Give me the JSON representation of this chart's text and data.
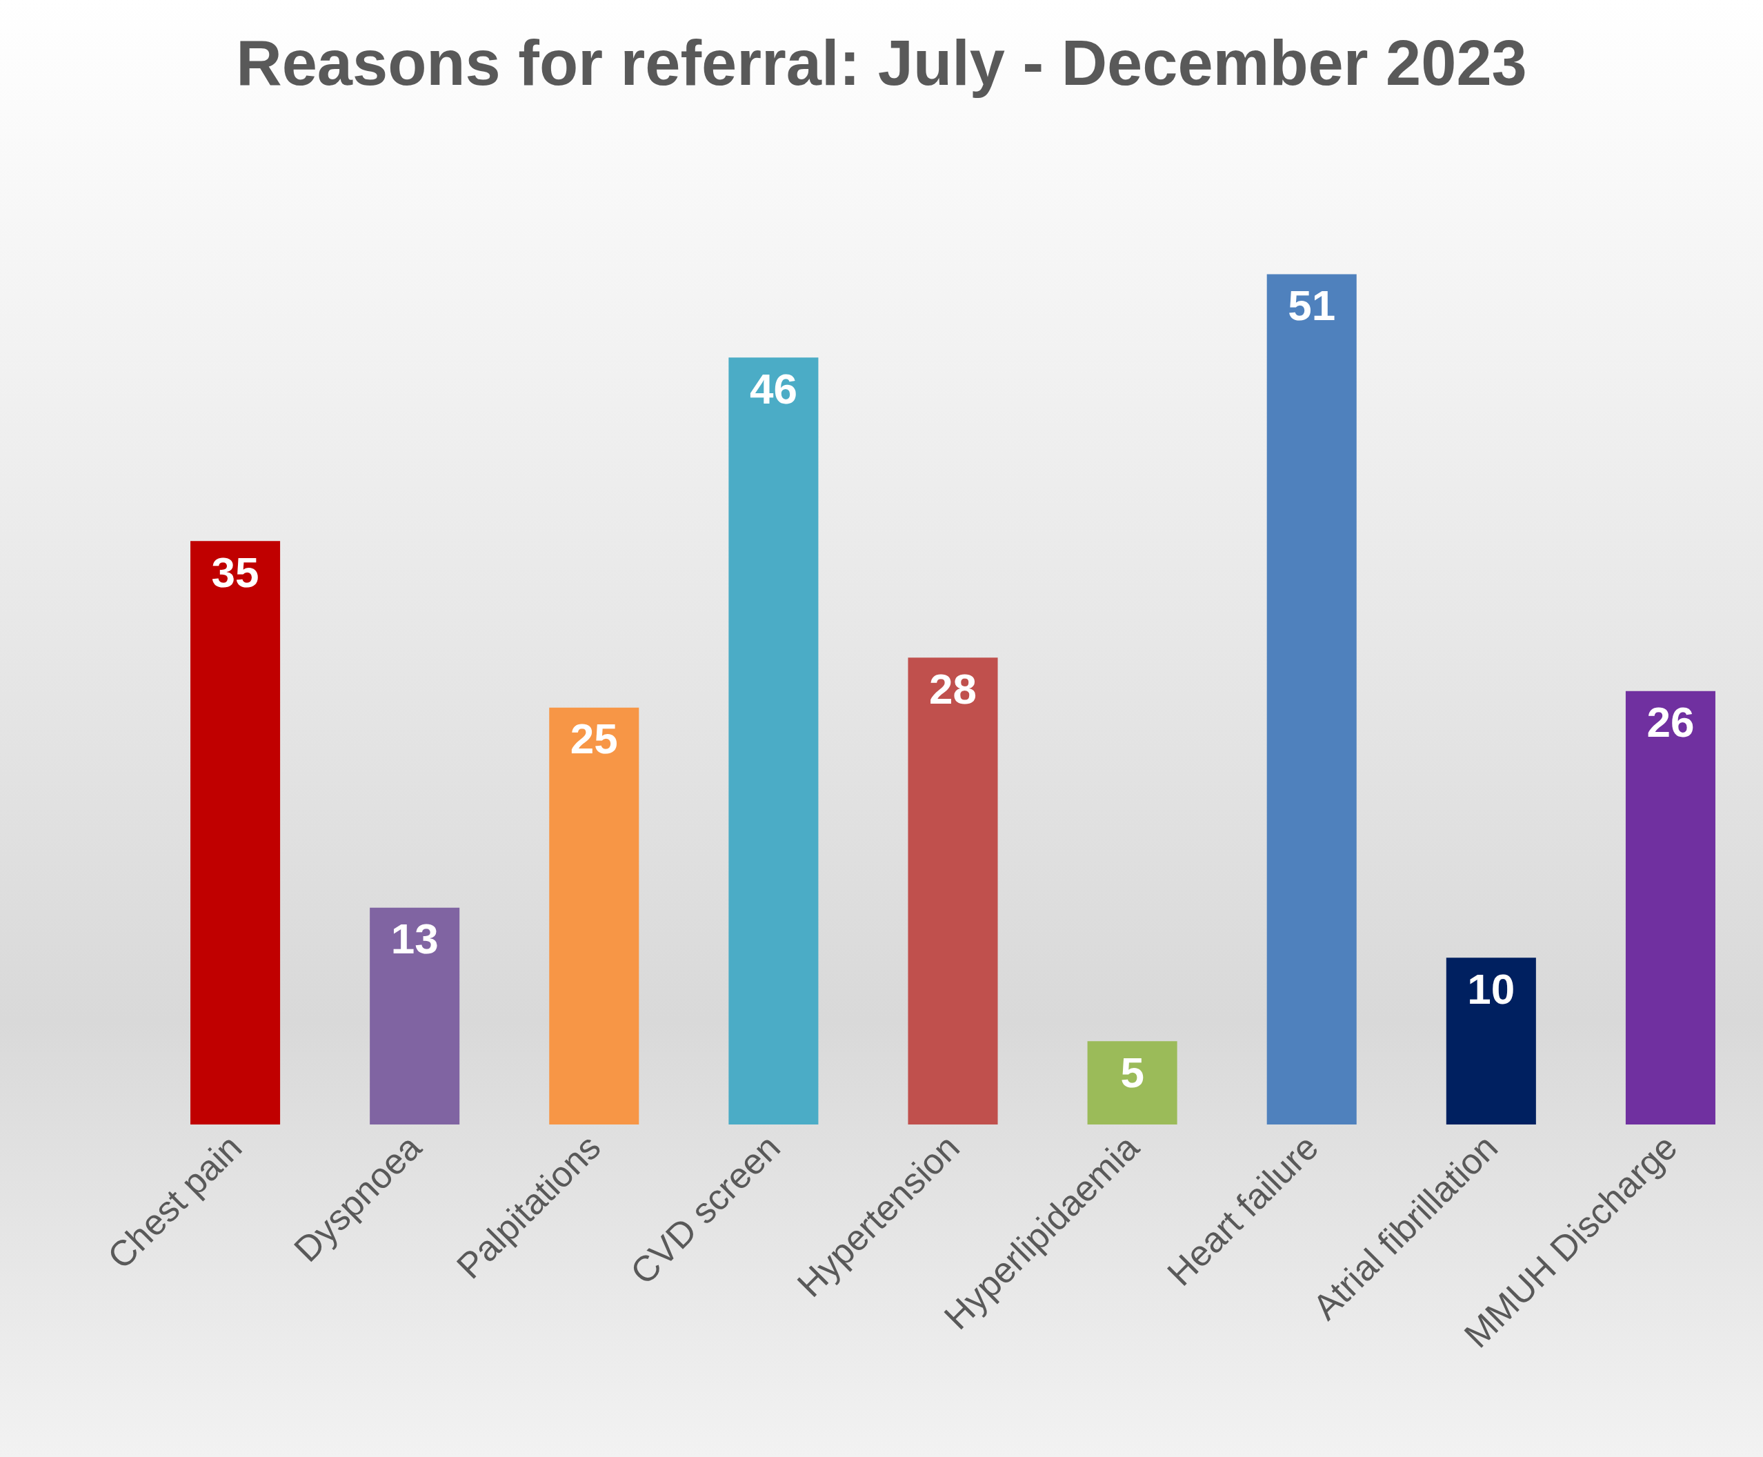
{
  "chart_data": {
    "type": "bar",
    "title": "Reasons for referral: July - December 2023",
    "categories": [
      "Chest pain",
      "Dyspnoea",
      "Palpitations",
      "CVD screen",
      "Hypertension",
      "Hyperlipidaemia",
      "Heart failure",
      "Atrial fibrillation",
      "MMUH Discharge"
    ],
    "values": [
      35,
      13,
      25,
      46,
      28,
      5,
      51,
      10,
      26
    ],
    "colors": [
      "#c00000",
      "#8064a2",
      "#f79646",
      "#4bacc6",
      "#c0504d",
      "#9bbb59",
      "#4f81bd",
      "#002060",
      "#7030a0"
    ],
    "data_labels": true
  }
}
